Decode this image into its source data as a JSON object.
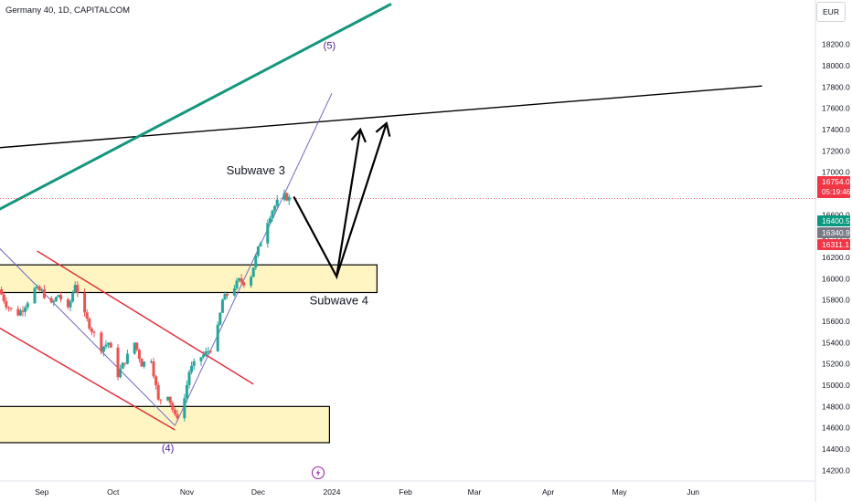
{
  "header": {
    "symbol": "Germany 40, 1D, CAPITALCOM",
    "currency": "EUR"
  },
  "colors": {
    "up": "#26a69a",
    "down": "#ef5350",
    "zone_fill": "#fff5c2",
    "channel": "#e0323e",
    "trend_top": "#15967c",
    "trend_wave": "#7068c8",
    "resistance": "#000000"
  },
  "chart_data": {
    "type": "candlestick",
    "ylim": [
      14100,
      18600
    ],
    "y_ticks": [
      14200,
      14400,
      14600,
      14800,
      15000,
      15200,
      15400,
      15600,
      15800,
      16000,
      16200,
      16400,
      16600,
      16800,
      17000,
      17200,
      17400,
      17600,
      17800,
      18000,
      18200
    ],
    "y_tick_labels": [
      "14200.0",
      "14400.0",
      "14600.0",
      "14800.0",
      "15000.0",
      "15200.0",
      "15400.0",
      "15600.0",
      "15800.0",
      "16000.0",
      "16200.0",
      "16400.0",
      "16600.0",
      "16800.0",
      "17000.0",
      "17200.0",
      "17400.0",
      "17600.0",
      "17800.0",
      "18000.0",
      "18200.0"
    ],
    "x_labels": [
      {
        "label": "Sep",
        "date": "2023-09-01"
      },
      {
        "label": "Oct",
        "date": "2023-10-01"
      },
      {
        "label": "Nov",
        "date": "2023-11-01"
      },
      {
        "label": "Dec",
        "date": "2023-12-01"
      },
      {
        "label": "2024",
        "date": "2024-01-01"
      },
      {
        "label": "Feb",
        "date": "2024-02-01"
      },
      {
        "label": "Mar",
        "date": "2024-03-01"
      },
      {
        "label": "Apr",
        "date": "2024-04-01"
      },
      {
        "label": "May",
        "date": "2024-05-01"
      },
      {
        "label": "Jun",
        "date": "2024-06-01"
      }
    ],
    "close_series": [
      {
        "date": "2023-08-14",
        "close": 15900
      },
      {
        "date": "2023-08-17",
        "close": 15760
      },
      {
        "date": "2023-08-21",
        "close": 15650
      },
      {
        "date": "2023-08-24",
        "close": 15720
      },
      {
        "date": "2023-08-29",
        "close": 15900
      },
      {
        "date": "2023-09-01",
        "close": 15880
      },
      {
        "date": "2023-09-05",
        "close": 15750
      },
      {
        "date": "2023-09-08",
        "close": 15850
      },
      {
        "date": "2023-09-12",
        "close": 15700
      },
      {
        "date": "2023-09-15",
        "close": 15960
      },
      {
        "date": "2023-09-19",
        "close": 15650
      },
      {
        "date": "2023-09-22",
        "close": 15520
      },
      {
        "date": "2023-09-26",
        "close": 15350
      },
      {
        "date": "2023-09-29",
        "close": 15400
      },
      {
        "date": "2023-10-03",
        "close": 15100
      },
      {
        "date": "2023-10-06",
        "close": 15230
      },
      {
        "date": "2023-10-10",
        "close": 15400
      },
      {
        "date": "2023-10-13",
        "close": 15200
      },
      {
        "date": "2023-10-17",
        "close": 15250
      },
      {
        "date": "2023-10-20",
        "close": 14850
      },
      {
        "date": "2023-10-24",
        "close": 14920
      },
      {
        "date": "2023-10-27",
        "close": 14700
      },
      {
        "date": "2023-10-30",
        "close": 14750
      },
      {
        "date": "2023-11-02",
        "close": 15130
      },
      {
        "date": "2023-11-06",
        "close": 15250
      },
      {
        "date": "2023-11-09",
        "close": 15300
      },
      {
        "date": "2023-11-13",
        "close": 15400
      },
      {
        "date": "2023-11-16",
        "close": 15800
      },
      {
        "date": "2023-11-20",
        "close": 15900
      },
      {
        "date": "2023-11-23",
        "close": 15980
      },
      {
        "date": "2023-11-27",
        "close": 15950
      },
      {
        "date": "2023-11-30",
        "close": 16200
      },
      {
        "date": "2023-12-04",
        "close": 16500
      },
      {
        "date": "2023-12-07",
        "close": 16650
      },
      {
        "date": "2023-12-11",
        "close": 16780
      },
      {
        "date": "2023-12-14",
        "close": 16754
      }
    ],
    "price_labels": [
      {
        "value": 16754.0,
        "text": "16754.0",
        "sub": "05:19:46",
        "color": "#f23645"
      },
      {
        "value": 16400.5,
        "text": "16400.5",
        "color": "#089981"
      },
      {
        "value": 16340.9,
        "text": "16340.9",
        "color": "#787b86"
      },
      {
        "value": 16311.1,
        "text": "16311.1",
        "color": "#f23645"
      }
    ],
    "zones": [
      {
        "top": 16130,
        "bottom": 15870,
        "start": "2023-08-14",
        "end": "2024-01-20"
      },
      {
        "top": 14800,
        "bottom": 14460,
        "start": "2023-08-14",
        "end": "2023-12-31"
      }
    ],
    "annotations": [
      {
        "text": "(5)",
        "date": "2023-12-31",
        "price": 18160,
        "color": "#4a1a8c"
      },
      {
        "text": "(4)",
        "date": "2023-10-24",
        "price": 14380,
        "color": "#4a1a8c"
      },
      {
        "text": "Subwave 3",
        "date": "2023-11-30",
        "price": 16980,
        "color": "#131722"
      },
      {
        "text": "Subwave 4",
        "date": "2024-01-04",
        "price": 15760,
        "color": "#131722"
      }
    ],
    "projection_path": [
      {
        "date": "2023-12-16",
        "price": 16770
      },
      {
        "date": "2024-01-03",
        "price": 16020
      },
      {
        "date": "2024-01-13",
        "price": 17400
      }
    ],
    "projection_path2": [
      {
        "date": "2024-01-03",
        "price": 16020
      },
      {
        "date": "2024-01-24",
        "price": 17460
      }
    ],
    "trendlines": [
      {
        "name": "resistance",
        "from": {
          "date": "2023-08-14",
          "price": 17230
        },
        "to": {
          "date": "2024-06-30",
          "price": 17810
        }
      },
      {
        "name": "trend-top",
        "from": {
          "date": "2023-08-14",
          "price": 16650
        },
        "to": {
          "date": "2024-01-26",
          "price": 18580
        }
      },
      {
        "name": "wave-line",
        "from": {
          "date": "2023-10-27",
          "price": 14620
        },
        "to": {
          "date": "2024-01-01",
          "price": 17740
        }
      },
      {
        "name": "descend-line",
        "from": {
          "date": "2023-08-14",
          "price": 16290
        },
        "to": {
          "date": "2023-10-27",
          "price": 14620
        }
      },
      {
        "name": "channel-upper",
        "from": {
          "date": "2023-08-30",
          "price": 16260
        },
        "to": {
          "date": "2023-11-29",
          "price": 15010
        }
      },
      {
        "name": "channel-lower",
        "from": {
          "date": "2023-08-14",
          "price": 15540
        },
        "to": {
          "date": "2023-10-27",
          "price": 14580
        }
      }
    ]
  }
}
